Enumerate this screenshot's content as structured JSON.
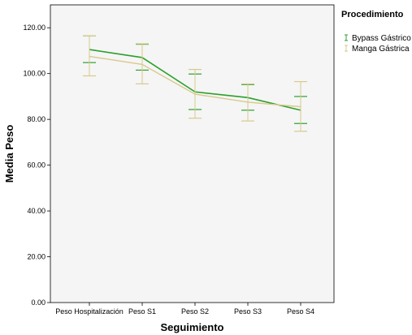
{
  "chart_data": {
    "type": "line",
    "xlabel": "Seguimiento",
    "ylabel": "Media Peso",
    "ylim": [
      0,
      130
    ],
    "yticks": [
      "0.00",
      "20.00",
      "40.00",
      "60.00",
      "80.00",
      "100.00",
      "120.00"
    ],
    "categories": [
      "Peso Hospitalización",
      "Peso S1",
      "Peso S2",
      "Peso S3",
      "Peso S4"
    ],
    "error_bars": true,
    "grid": false,
    "legend": {
      "title": "Procedimiento",
      "position": "top-right"
    },
    "series": [
      {
        "name": "Bypass Gástrico",
        "color": "#2ca02c",
        "values": [
          110.5,
          107.0,
          92.0,
          89.5,
          84.0
        ],
        "lower": [
          104.8,
          101.5,
          84.3,
          84.0,
          78.2
        ],
        "upper": [
          116.5,
          112.8,
          99.8,
          95.2,
          90.0
        ]
      },
      {
        "name": "Manga Gástrica",
        "color": "#d8c98c",
        "values": [
          107.5,
          104.0,
          91.0,
          87.5,
          85.5
        ],
        "lower": [
          99.0,
          95.5,
          80.5,
          79.3,
          74.8
        ],
        "upper": [
          116.5,
          113.0,
          101.8,
          95.5,
          96.5
        ]
      }
    ]
  }
}
